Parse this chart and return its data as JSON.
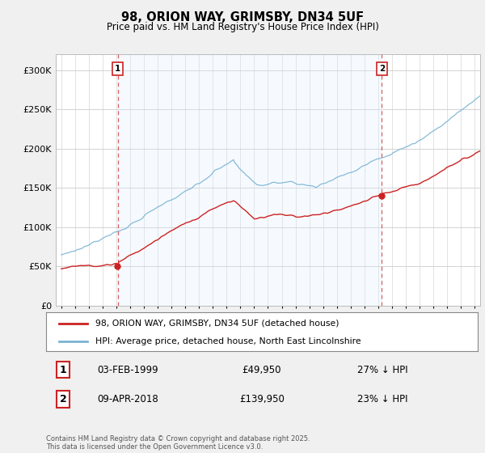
{
  "title": "98, ORION WAY, GRIMSBY, DN34 5UF",
  "subtitle": "Price paid vs. HM Land Registry's House Price Index (HPI)",
  "legend_line1": "98, ORION WAY, GRIMSBY, DN34 5UF (detached house)",
  "legend_line2": "HPI: Average price, detached house, North East Lincolnshire",
  "sale1_date_str": "03-FEB-1999",
  "sale1_price_str": "£49,950",
  "sale1_hpi_str": "27% ↓ HPI",
  "sale1_date_x": 1999.09,
  "sale2_date_str": "09-APR-2018",
  "sale2_price_str": "£139,950",
  "sale2_hpi_str": "23% ↓ HPI",
  "sale2_date_x": 2018.27,
  "ylim": [
    0,
    320000
  ],
  "xlim_left": 1994.6,
  "xlim_right": 2025.4,
  "hpi_color": "#7ab3d4",
  "price_color": "#cc2222",
  "vline_color": "#cc2222",
  "shade_color": "#ddeeff",
  "footer": "Contains HM Land Registry data © Crown copyright and database right 2025.\nThis data is licensed under the Open Government Licence v3.0.",
  "background_color": "#f0f0f0",
  "plot_bg_color": "#ffffff"
}
